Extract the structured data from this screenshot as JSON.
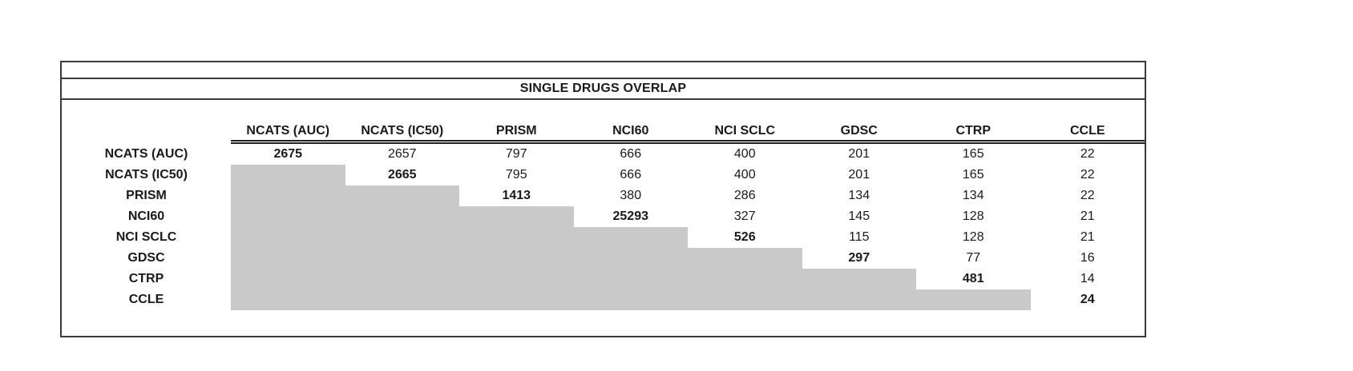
{
  "title": "SINGLE DRUGS OVERLAP",
  "colors": {
    "gray_fill": "#c9c9c9",
    "border": "#3a3a3a"
  },
  "chart_data": {
    "type": "table",
    "title": "SINGLE DRUGS OVERLAP",
    "description_of_layout": "upper-triangular pairwise overlap matrix; diagonal values bold; lower triangle filled gray with no values; double rule under column headers",
    "col_labels": [
      "NCATS (AUC)",
      "NCATS (IC50)",
      "PRISM",
      "NCI60",
      "NCI SCLC",
      "GDSC",
      "CTRP",
      "CCLE"
    ],
    "row_labels": [
      "NCATS (AUC)",
      "NCATS (IC50)",
      "PRISM",
      "NCI60",
      "NCI SCLC",
      "GDSC",
      "CTRP",
      "CCLE"
    ],
    "cells": [
      [
        "2675",
        "2657",
        "797",
        "666",
        "400",
        "201",
        "165",
        "22"
      ],
      [
        null,
        "2665",
        "795",
        "666",
        "400",
        "201",
        "165",
        "22"
      ],
      [
        null,
        null,
        "1413",
        "380",
        "286",
        "134",
        "134",
        "22"
      ],
      [
        null,
        null,
        null,
        "25293",
        "327",
        "145",
        "128",
        "21"
      ],
      [
        null,
        null,
        null,
        null,
        "526",
        "115",
        "128",
        "21"
      ],
      [
        null,
        null,
        null,
        null,
        null,
        "297",
        "77",
        "16"
      ],
      [
        null,
        null,
        null,
        null,
        null,
        null,
        "481",
        "14"
      ],
      [
        null,
        null,
        null,
        null,
        null,
        null,
        null,
        "24"
      ]
    ],
    "diagonal_bold": true,
    "lower_triangle_fill": "#c9c9c9"
  }
}
